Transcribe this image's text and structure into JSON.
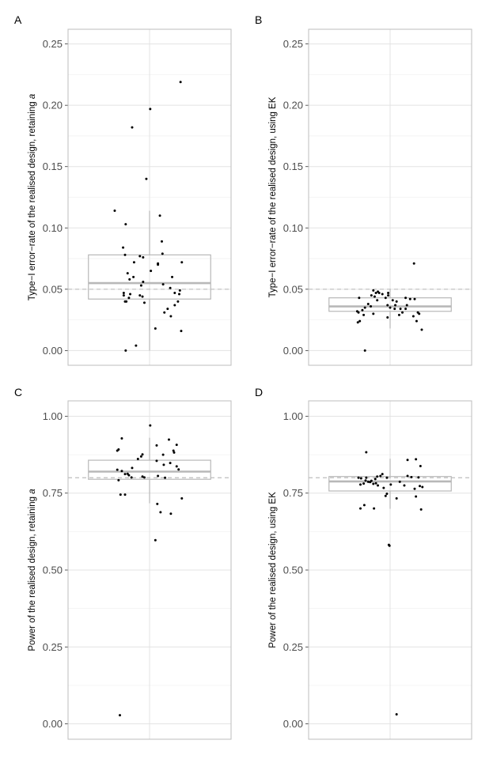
{
  "chart_data": [
    {
      "panel": "A",
      "type": "scatter",
      "overlay": "boxplot",
      "ylabel_prefix": "Type−I error−rate of the realised design, retaining ",
      "ylabel_var": "a",
      "ylim": [
        -0.012,
        0.262
      ],
      "yticks": [
        0.0,
        0.05,
        0.1,
        0.15,
        0.2,
        0.25
      ],
      "ytick_labels": [
        "0.00",
        "0.05",
        "0.10",
        "0.15",
        "0.20",
        "0.25"
      ],
      "reference_line": 0.05,
      "box": {
        "whisker_low": 0.0,
        "q1": 0.042,
        "median": 0.055,
        "q3": 0.078,
        "whisker_high": 0.114
      },
      "points": [
        [
          -0.27,
          0.182
        ],
        [
          0.48,
          0.219
        ],
        [
          0.01,
          0.197
        ],
        [
          -0.05,
          0.14
        ],
        [
          -0.54,
          0.114
        ],
        [
          0.16,
          0.11
        ],
        [
          -0.37,
          0.103
        ],
        [
          0.19,
          0.089
        ],
        [
          -0.41,
          0.084
        ],
        [
          0.2,
          0.079
        ],
        [
          -0.38,
          0.078
        ],
        [
          -0.15,
          0.077
        ],
        [
          -0.1,
          0.076
        ],
        [
          0.5,
          0.072
        ],
        [
          -0.24,
          0.072
        ],
        [
          0.13,
          0.071
        ],
        [
          0.13,
          0.07
        ],
        [
          0.02,
          0.065
        ],
        [
          -0.34,
          0.063
        ],
        [
          0.35,
          0.06
        ],
        [
          -0.25,
          0.06
        ],
        [
          -0.31,
          0.058
        ],
        [
          -0.1,
          0.056
        ],
        [
          0.21,
          0.054
        ],
        [
          -0.13,
          0.053
        ],
        [
          0.32,
          0.051
        ],
        [
          0.47,
          0.049
        ],
        [
          0.39,
          0.047
        ],
        [
          -0.4,
          0.047
        ],
        [
          0.46,
          0.046
        ],
        [
          -0.3,
          0.046
        ],
        [
          -0.4,
          0.045
        ],
        [
          -0.15,
          0.045
        ],
        [
          -0.11,
          0.044
        ],
        [
          -0.32,
          0.043
        ],
        [
          -0.36,
          0.04
        ],
        [
          -0.38,
          0.04
        ],
        [
          -0.08,
          0.039
        ],
        [
          0.44,
          0.04
        ],
        [
          0.39,
          0.037
        ],
        [
          0.28,
          0.034
        ],
        [
          0.23,
          0.031
        ],
        [
          0.33,
          0.028
        ],
        [
          0.09,
          0.018
        ],
        [
          0.49,
          0.016
        ],
        [
          -0.21,
          0.004
        ],
        [
          -0.37,
          0.0
        ]
      ]
    },
    {
      "panel": "B",
      "type": "scatter",
      "overlay": "boxplot",
      "ylabel_prefix": "Type−I error−rate of the realised design, using EK",
      "ylabel_var": "",
      "ylim": [
        -0.012,
        0.262
      ],
      "yticks": [
        0.0,
        0.05,
        0.1,
        0.15,
        0.2,
        0.25
      ],
      "ytick_labels": [
        "0.00",
        "0.05",
        "0.10",
        "0.15",
        "0.20",
        "0.25"
      ],
      "reference_line": 0.05,
      "box": {
        "whisker_low": 0.018,
        "q1": 0.032,
        "median": 0.036,
        "q3": 0.043,
        "whisker_high": 0.05
      },
      "points": [
        [
          0.37,
          0.071
        ],
        [
          -0.26,
          0.049
        ],
        [
          -0.19,
          0.048
        ],
        [
          -0.22,
          0.047
        ],
        [
          -0.17,
          0.047
        ],
        [
          -0.03,
          0.047
        ],
        [
          -0.12,
          0.046
        ],
        [
          -0.03,
          0.045
        ],
        [
          -0.29,
          0.045
        ],
        [
          -0.24,
          0.044
        ],
        [
          -0.07,
          0.043
        ],
        [
          0.24,
          0.043
        ],
        [
          -0.48,
          0.043
        ],
        [
          0.31,
          0.042
        ],
        [
          0.38,
          0.042
        ],
        [
          -0.2,
          0.041
        ],
        [
          0.04,
          0.041
        ],
        [
          0.1,
          0.04
        ],
        [
          -0.34,
          0.038
        ],
        [
          -0.04,
          0.037
        ],
        [
          0.08,
          0.037
        ],
        [
          0.26,
          0.037
        ],
        [
          -0.3,
          0.036
        ],
        [
          0.0,
          0.035
        ],
        [
          -0.39,
          0.035
        ],
        [
          0.16,
          0.034
        ],
        [
          0.24,
          0.034
        ],
        [
          0.07,
          0.034
        ],
        [
          -0.43,
          0.033
        ],
        [
          -0.51,
          0.032
        ],
        [
          0.43,
          0.031
        ],
        [
          -0.49,
          0.031
        ],
        [
          0.19,
          0.031
        ],
        [
          0.45,
          0.03
        ],
        [
          -0.41,
          0.029
        ],
        [
          -0.26,
          0.03
        ],
        [
          0.14,
          0.029
        ],
        [
          0.36,
          0.028
        ],
        [
          -0.04,
          0.027
        ],
        [
          0.41,
          0.024
        ],
        [
          -0.47,
          0.024
        ],
        [
          -0.5,
          0.023
        ],
        [
          0.49,
          0.017
        ],
        [
          -0.39,
          0.0
        ]
      ]
    },
    {
      "panel": "C",
      "type": "scatter",
      "overlay": "boxplot",
      "ylabel_prefix": "Power of the realised design, retaining ",
      "ylabel_var": "a",
      "ylim": [
        -0.05,
        1.05
      ],
      "yticks": [
        0.0,
        0.25,
        0.5,
        0.75,
        1.0
      ],
      "ytick_labels": [
        "0.00",
        "0.25",
        "0.50",
        "0.75",
        "1.00"
      ],
      "reference_line": 0.8,
      "box": {
        "whisker_low": 0.717,
        "q1": 0.795,
        "median": 0.82,
        "q3": 0.857,
        "whisker_high": 0.93
      },
      "points": [
        [
          0.01,
          0.97
        ],
        [
          -0.43,
          0.928
        ],
        [
          0.3,
          0.924
        ],
        [
          0.42,
          0.907
        ],
        [
          0.11,
          0.905
        ],
        [
          -0.48,
          0.892
        ],
        [
          -0.5,
          0.888
        ],
        [
          0.37,
          0.888
        ],
        [
          0.38,
          0.882
        ],
        [
          -0.11,
          0.876
        ],
        [
          0.21,
          0.875
        ],
        [
          -0.13,
          0.869
        ],
        [
          -0.18,
          0.861
        ],
        [
          0.11,
          0.855
        ],
        [
          0.32,
          0.848
        ],
        [
          0.22,
          0.842
        ],
        [
          0.42,
          0.837
        ],
        [
          -0.27,
          0.832
        ],
        [
          0.45,
          0.827
        ],
        [
          -0.5,
          0.826
        ],
        [
          -0.43,
          0.822
        ],
        [
          -0.34,
          0.813
        ],
        [
          -0.38,
          0.812
        ],
        [
          -0.32,
          0.808
        ],
        [
          0.13,
          0.806
        ],
        [
          -0.11,
          0.804
        ],
        [
          -0.08,
          0.801
        ],
        [
          -0.28,
          0.801
        ],
        [
          0.24,
          0.8
        ],
        [
          -0.48,
          0.792
        ],
        [
          -0.45,
          0.745
        ],
        [
          -0.38,
          0.745
        ],
        [
          0.5,
          0.733
        ],
        [
          0.12,
          0.715
        ],
        [
          0.17,
          0.688
        ],
        [
          0.33,
          0.683
        ],
        [
          0.09,
          0.597
        ],
        [
          -0.46,
          0.028
        ]
      ]
    },
    {
      "panel": "D",
      "type": "scatter",
      "overlay": "boxplot",
      "ylabel_prefix": "Power of the realised design, using EK",
      "ylabel_var": "",
      "ylim": [
        -0.05,
        1.05
      ],
      "yticks": [
        0.0,
        0.25,
        0.5,
        0.75,
        1.0
      ],
      "ytick_labels": [
        "0.00",
        "0.25",
        "0.50",
        "0.75",
        "1.00"
      ],
      "reference_line": 0.8,
      "box": {
        "whisker_low": 0.699,
        "q1": 0.757,
        "median": 0.788,
        "q3": 0.804,
        "whisker_high": 0.862
      },
      "points": [
        [
          -0.37,
          0.883
        ],
        [
          0.4,
          0.86
        ],
        [
          0.27,
          0.858
        ],
        [
          0.47,
          0.838
        ],
        [
          -0.49,
          0.8
        ],
        [
          0.27,
          0.806
        ],
        [
          0.33,
          0.802
        ],
        [
          0.44,
          0.801
        ],
        [
          -0.37,
          0.8
        ],
        [
          -0.45,
          0.798
        ],
        [
          -0.15,
          0.806
        ],
        [
          -0.12,
          0.812
        ],
        [
          -0.2,
          0.804
        ],
        [
          -0.05,
          0.8
        ],
        [
          -0.23,
          0.796
        ],
        [
          -0.38,
          0.791
        ],
        [
          -0.29,
          0.79
        ],
        [
          -0.34,
          0.787
        ],
        [
          -0.31,
          0.786
        ],
        [
          0.15,
          0.787
        ],
        [
          -0.41,
          0.781
        ],
        [
          -0.22,
          0.782
        ],
        [
          -0.26,
          0.78
        ],
        [
          -0.46,
          0.778
        ],
        [
          0.01,
          0.778
        ],
        [
          -0.19,
          0.775
        ],
        [
          0.22,
          0.775
        ],
        [
          0.46,
          0.773
        ],
        [
          0.5,
          0.77
        ],
        [
          -0.1,
          0.767
        ],
        [
          0.38,
          0.764
        ],
        [
          -0.05,
          0.748
        ],
        [
          -0.07,
          0.741
        ],
        [
          0.4,
          0.739
        ],
        [
          0.1,
          0.733
        ],
        [
          -0.4,
          0.711
        ],
        [
          -0.25,
          0.7
        ],
        [
          -0.46,
          0.7
        ],
        [
          0.48,
          0.697
        ],
        [
          -0.02,
          0.582
        ],
        [
          -0.01,
          0.579
        ],
        [
          0.1,
          0.031
        ]
      ]
    }
  ]
}
